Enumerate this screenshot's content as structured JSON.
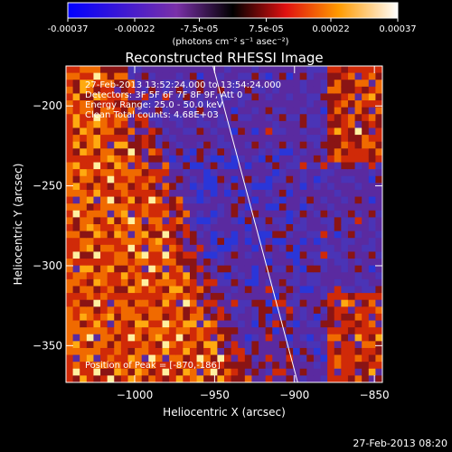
{
  "colorbar": {
    "tick_labels": [
      "-0.00037",
      "-0.00022",
      "-7.5e-05",
      "7.5e-05",
      "0.00022",
      "0.00037"
    ],
    "tick_values": [
      -0.00037,
      -0.00022,
      -7.5e-05,
      7.5e-05,
      0.00022,
      0.00037
    ],
    "range": [
      -0.00037,
      0.00037
    ],
    "units": "(photons cm⁻² s⁻¹ asec⁻²)"
  },
  "chart_data": {
    "type": "heatmap",
    "title": "Reconstructed RHESSI Image",
    "xlabel": "Heliocentric X (arcsec)",
    "ylabel": "Heliocentric Y (arcsec)",
    "xlim": [
      -1043,
      -845
    ],
    "ylim": [
      -373,
      -175
    ],
    "x_ticks": [
      -1000,
      -950,
      -900,
      -850
    ],
    "x_tick_labels": [
      "−1000",
      "−950",
      "−900",
      "−850"
    ],
    "y_ticks": [
      -200,
      -250,
      -300,
      -350
    ],
    "y_tick_labels": [
      "−200",
      "−250",
      "−300",
      "−350"
    ],
    "annotations": [
      "27-Feb-2013 13:52:24.000  to  13:54:24.000",
      "Detectors: 3F 5F 6F 7F 8F 9F, Att 0",
      "Energy Range: 25.0 - 50.0 keV",
      "Clean    Total counts: 4.68E+03"
    ],
    "peak_label": "Position of Peak = [-870,-186]",
    "peak": [
      -870,
      -186
    ],
    "limb_line": [
      [
        -951,
        -175
      ],
      [
        -898,
        -373
      ]
    ],
    "colormap": "blue-white-red-yellow",
    "color_description": "emission concentrated in the upper-left (off-limb) region and along the right edge; disk interior mostly low/negative values"
  },
  "footer": {
    "timestamp": "27-Feb-2013 08:20"
  }
}
